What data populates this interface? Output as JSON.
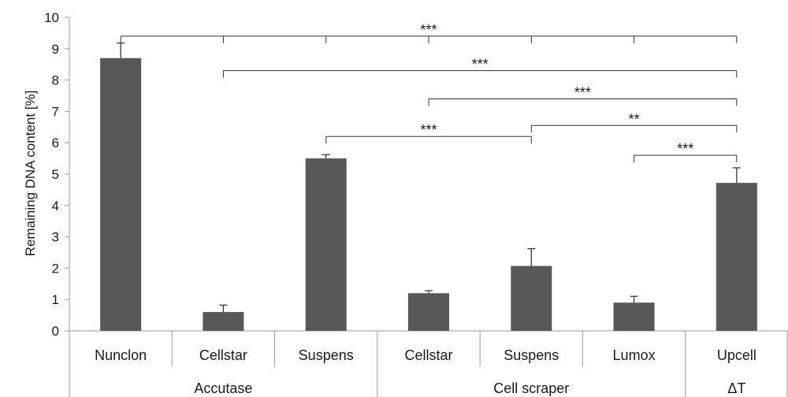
{
  "chart_data": {
    "type": "bar",
    "ylabel": "Remaining  DNA content [%]",
    "ylim": [
      0,
      10
    ],
    "yticks": [
      0,
      1,
      2,
      3,
      4,
      5,
      6,
      7,
      8,
      9,
      10
    ],
    "grid": false,
    "bar_color": "#585858",
    "categories": [
      "Nunclon",
      "Cellstar",
      "Suspens",
      "Cellstar",
      "Suspens",
      "Lumox",
      "Upcell"
    ],
    "values": [
      8.7,
      0.6,
      5.5,
      1.2,
      2.07,
      0.9,
      4.72
    ],
    "error": [
      0.48,
      0.22,
      0.12,
      0.08,
      0.55,
      0.2,
      0.48
    ],
    "groups": [
      {
        "label": "Accutase",
        "start": 0,
        "end": 2
      },
      {
        "label": "Cell scraper",
        "start": 3,
        "end": 5
      },
      {
        "label": "ΔT",
        "start": 6,
        "end": 6
      }
    ],
    "significance": [
      {
        "label": "***",
        "from": 0,
        "to": 6,
        "y": 9.4,
        "ticks": [
          0,
          1,
          2,
          3,
          4,
          5,
          6
        ]
      },
      {
        "label": "***",
        "from": 1,
        "to": 6,
        "y": 8.3,
        "ticks": [
          1,
          6
        ]
      },
      {
        "label": "***",
        "from": 3,
        "to": 6,
        "y": 7.4,
        "ticks": [
          3,
          6
        ]
      },
      {
        "label": "***",
        "from": 2,
        "to": 4,
        "y": 6.2,
        "ticks": [
          2,
          4
        ]
      },
      {
        "label": "**",
        "from": 4,
        "to": 6,
        "y": 6.55,
        "ticks": [
          4,
          6
        ]
      },
      {
        "label": "***",
        "from": 5,
        "to": 6,
        "y": 5.6,
        "ticks": [
          5,
          6
        ]
      }
    ]
  }
}
